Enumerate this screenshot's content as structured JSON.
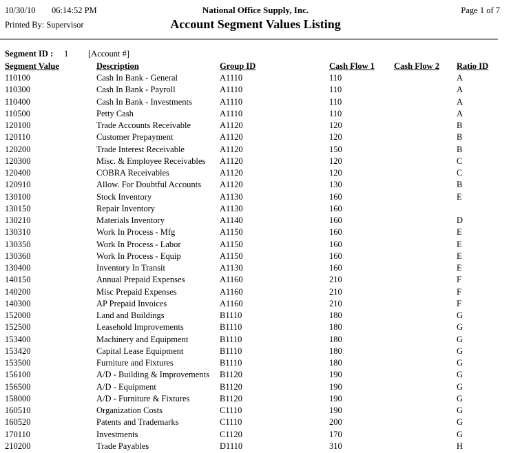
{
  "header": {
    "date": "10/30/10",
    "time": "06:14:52 PM",
    "company": "National Office Supply, Inc.",
    "page": "Page 1 of 7",
    "printed_by": "Printed By: Supervisor",
    "title": "Account Segment Values Listing"
  },
  "segment": {
    "label": "Segment ID :",
    "id": "1",
    "name": "[Account #]"
  },
  "table": {
    "columns": [
      "Segment Value",
      "Description",
      "Group ID",
      "Cash Flow 1",
      "Cash Flow 2",
      "Ratio ID"
    ],
    "rows": [
      [
        "110100",
        "Cash In Bank - General",
        "A1110",
        "110",
        "",
        "A"
      ],
      [
        "110300",
        "Cash In Bank - Payroll",
        "A1110",
        "110",
        "",
        "A"
      ],
      [
        "110400",
        "Cash In Bank - Investments",
        "A1110",
        "110",
        "",
        "A"
      ],
      [
        "110500",
        "Petty Cash",
        "A1110",
        "110",
        "",
        "A"
      ],
      [
        "120100",
        "Trade Accounts Receivable",
        "A1120",
        "120",
        "",
        "B"
      ],
      [
        "120110",
        "Customer Prepayment",
        "A1120",
        "120",
        "",
        "B"
      ],
      [
        "120200",
        "Trade Interest Receivable",
        "A1120",
        "150",
        "",
        "B"
      ],
      [
        "120300",
        "Misc. & Employee Receivables",
        "A1120",
        "120",
        "",
        "C"
      ],
      [
        "120400",
        "COBRA Receivables",
        "A1120",
        "120",
        "",
        "C"
      ],
      [
        "120910",
        "Allow. For Doubtful Accounts",
        "A1120",
        "130",
        "",
        "B"
      ],
      [
        "130100",
        "Stock Inventory",
        "A1130",
        "160",
        "",
        "E"
      ],
      [
        "130150",
        "Repair Inventory",
        "A1130",
        "160",
        "",
        ""
      ],
      [
        "130210",
        "Materials Inventory",
        "A1140",
        "160",
        "",
        "D"
      ],
      [
        "130310",
        "Work In Process - Mfg",
        "A1150",
        "160",
        "",
        "E"
      ],
      [
        "130350",
        "Work In Process - Labor",
        "A1150",
        "160",
        "",
        "E"
      ],
      [
        "130360",
        "Work In Process - Equip",
        "A1150",
        "160",
        "",
        "E"
      ],
      [
        "130400",
        "Inventory In Transit",
        "A1130",
        "160",
        "",
        "E"
      ],
      [
        "140150",
        "Annual Prepaid Expenses",
        "A1160",
        "210",
        "",
        "F"
      ],
      [
        "140200",
        "Misc Prepaid Expenses",
        "A1160",
        "210",
        "",
        "F"
      ],
      [
        "140300",
        "AP Prepaid Invoices",
        "A1160",
        "210",
        "",
        "F"
      ],
      [
        "152000",
        "Land and Buildings",
        "B1110",
        "180",
        "",
        "G"
      ],
      [
        "152500",
        "Leasehold Improvements",
        "B1110",
        "180",
        "",
        "G"
      ],
      [
        "153400",
        "Machinery and Equipment",
        "B1110",
        "180",
        "",
        "G"
      ],
      [
        "153420",
        "Capital Lease Equipment",
        "B1110",
        "180",
        "",
        "G"
      ],
      [
        "153500",
        "Furniture and Fixtures",
        "B1110",
        "180",
        "",
        "G"
      ],
      [
        "156100",
        "A/D - Building & Improvements",
        "B1120",
        "190",
        "",
        "G"
      ],
      [
        "156500",
        "A/D - Equipment",
        "B1120",
        "190",
        "",
        "G"
      ],
      [
        "158000",
        "A/D - Furniture & Fixtures",
        "B1120",
        "190",
        "",
        "G"
      ],
      [
        "160510",
        "Organization Costs",
        "C1110",
        "190",
        "",
        "G"
      ],
      [
        "160520",
        "Patents and Trademarks",
        "C1110",
        "200",
        "",
        "G"
      ],
      [
        "170110",
        "Investments",
        "C1120",
        "170",
        "",
        "G"
      ],
      [
        "210200",
        "Trade Payables",
        "D1110",
        "310",
        "",
        "H"
      ]
    ]
  },
  "colors": {
    "rule": "#8c8c8c",
    "text": "#000000",
    "background": "#ffffff"
  }
}
